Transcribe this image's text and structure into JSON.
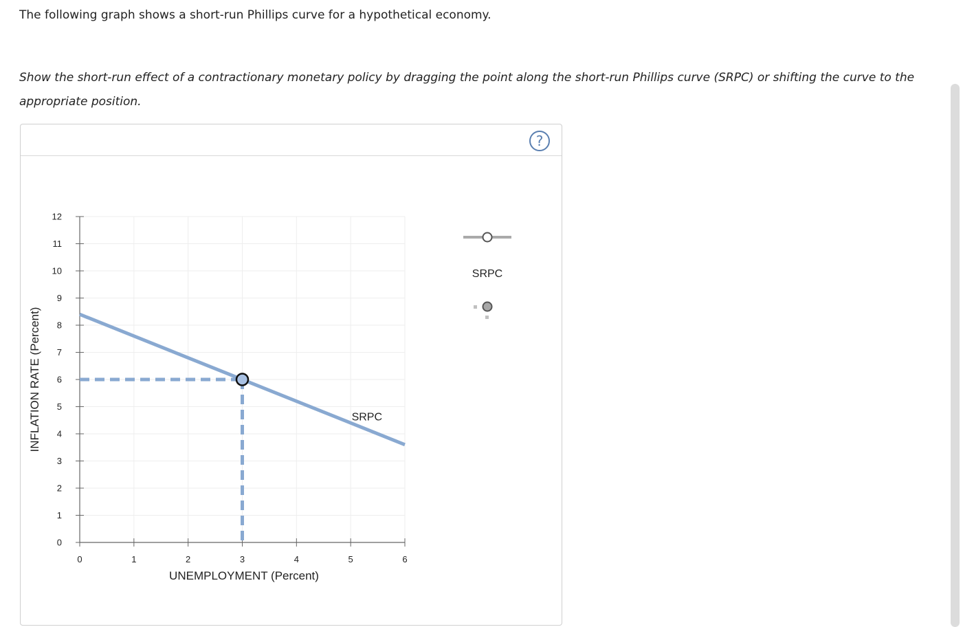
{
  "question": {
    "intro": "The following graph shows a short-run Phillips curve for a hypothetical economy.",
    "instructions": "Show the short-run effect of a contractionary monetary policy by dragging the point along the short-run Phillips curve (SRPC) or shifting the curve to the appropriate position."
  },
  "panel": {
    "help_label": "?"
  },
  "legend": {
    "curve_tool_label": "SRPC"
  },
  "chart_data": {
    "type": "line",
    "xlabel": "UNEMPLOYMENT (Percent)",
    "ylabel": "INFLATION RATE (Percent)",
    "xlim": [
      0,
      6
    ],
    "ylim": [
      0,
      12
    ],
    "xticks": [
      "0",
      "1",
      "2",
      "3",
      "4",
      "5",
      "6"
    ],
    "yticks": [
      "0",
      "1",
      "2",
      "3",
      "4",
      "5",
      "6",
      "7",
      "8",
      "9",
      "10",
      "11",
      "12"
    ],
    "grid": true,
    "series": [
      {
        "name": "SRPC",
        "x": [
          0,
          6
        ],
        "y": [
          8.4,
          3.6
        ]
      }
    ],
    "point": {
      "x": 3,
      "y": 6
    },
    "colors": {
      "curve": "#89a9d1",
      "point_fill": "#a9c1e3",
      "point_stroke": "#111111",
      "grid": "#eeeeee",
      "axis": "#666666",
      "legend_tool": "#aaaaaa"
    }
  }
}
